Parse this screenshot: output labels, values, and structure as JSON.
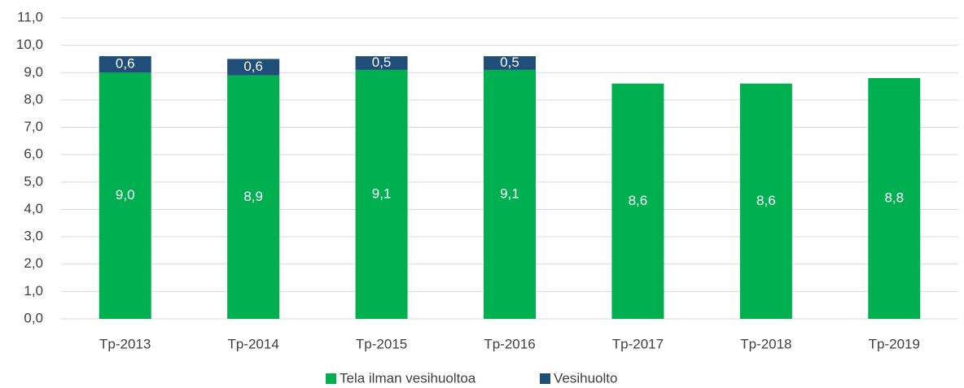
{
  "chart_data": {
    "type": "stacked_bar",
    "categories": [
      "Tp-2013",
      "Tp-2014",
      "Tp-2015",
      "Tp-2016",
      "Tp-2017",
      "Tp-2018",
      "Tp-2019"
    ],
    "series": [
      {
        "name": "Tela ilman vesihuoltoa",
        "color": "#00b050",
        "values": [
          9.0,
          8.9,
          9.1,
          9.1,
          8.6,
          8.6,
          8.8
        ],
        "value_labels": [
          "9,0",
          "8,9",
          "9,1",
          "9,1",
          "8,6",
          "8,6",
          "8,8"
        ]
      },
      {
        "name": "Vesihuolto",
        "color": "#1f4e79",
        "values": [
          0.6,
          0.6,
          0.5,
          0.5,
          null,
          null,
          null
        ],
        "value_labels": [
          "0,6",
          "0,6",
          "0,5",
          "0,5",
          null,
          null,
          null
        ]
      }
    ],
    "ylim": [
      0,
      11
    ],
    "yticks": [
      {
        "value": 0,
        "label": "0,0"
      },
      {
        "value": 1,
        "label": "1,0"
      },
      {
        "value": 2,
        "label": "2,0"
      },
      {
        "value": 3,
        "label": "3,0"
      },
      {
        "value": 4,
        "label": "4,0"
      },
      {
        "value": 5,
        "label": "5,0"
      },
      {
        "value": 6,
        "label": "6,0"
      },
      {
        "value": 7,
        "label": "7,0"
      },
      {
        "value": 8,
        "label": "8,0"
      },
      {
        "value": 9,
        "label": "9,0"
      },
      {
        "value": 10,
        "label": "10,0"
      },
      {
        "value": 11,
        "label": "11,0"
      }
    ],
    "grid": true,
    "legend": "bottom"
  }
}
